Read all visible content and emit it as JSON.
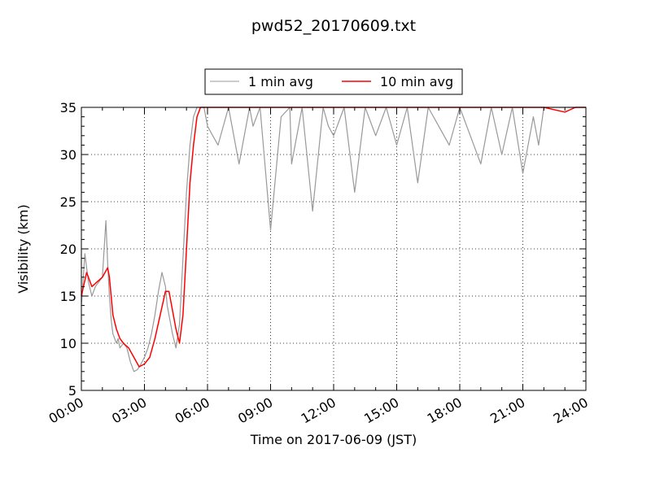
{
  "chart_data": {
    "type": "line",
    "title": "pwd52_20170609.txt",
    "xlabel": "Time on 2017-06-09 (JST)",
    "ylabel": "Visibility (km)",
    "xlim": [
      "00:00",
      "24:00"
    ],
    "ylim": [
      5,
      35
    ],
    "x_ticks": [
      "00:00",
      "03:00",
      "06:00",
      "09:00",
      "12:00",
      "15:00",
      "18:00",
      "21:00",
      "24:00"
    ],
    "y_ticks": [
      5,
      10,
      15,
      20,
      25,
      30,
      35
    ],
    "grid": true,
    "legend_position": "top-center",
    "series": [
      {
        "name": "1 min avg",
        "color": "#999999",
        "x": [
          "00:00",
          "00:10",
          "00:20",
          "00:30",
          "00:40",
          "00:50",
          "01:00",
          "01:10",
          "01:15",
          "01:20",
          "01:25",
          "01:30",
          "01:35",
          "01:40",
          "01:45",
          "01:50",
          "02:00",
          "02:10",
          "02:20",
          "02:30",
          "02:40",
          "02:50",
          "03:00",
          "03:10",
          "03:20",
          "03:30",
          "03:40",
          "03:50",
          "04:00",
          "04:05",
          "04:10",
          "04:20",
          "04:30",
          "04:40",
          "04:50",
          "05:00",
          "05:10",
          "05:20",
          "05:30",
          "05:40",
          "05:50",
          "06:00",
          "06:30",
          "07:00",
          "07:30",
          "08:00",
          "08:10",
          "08:30",
          "09:00",
          "09:30",
          "09:55",
          "10:00",
          "10:30",
          "11:00",
          "11:30",
          "11:45",
          "12:00",
          "12:30",
          "13:00",
          "13:30",
          "14:00",
          "14:30",
          "15:00",
          "15:30",
          "16:00",
          "16:30",
          "17:00",
          "17:30",
          "18:00",
          "18:30",
          "19:00",
          "19:30",
          "20:00",
          "20:30",
          "21:00",
          "21:30",
          "21:45",
          "22:00",
          "22:30",
          "23:00",
          "23:30",
          "24:00"
        ],
        "values": [
          14.0,
          19.5,
          16.5,
          15.0,
          16.0,
          16.5,
          17.0,
          23.0,
          18.5,
          15.0,
          12.5,
          11.0,
          10.5,
          10.0,
          10.5,
          9.5,
          10.0,
          9.5,
          8.0,
          7.0,
          7.2,
          7.8,
          8.5,
          9.5,
          11.0,
          13.0,
          15.5,
          17.5,
          16.0,
          14.0,
          13.0,
          11.0,
          9.5,
          12.0,
          19.0,
          26.0,
          31.0,
          34.0,
          35.0,
          35.0,
          35.0,
          33.0,
          31.0,
          35.0,
          29.0,
          35.0,
          33.0,
          35.0,
          22.0,
          34.0,
          35.0,
          29.0,
          35.0,
          24.0,
          35.0,
          33.0,
          32.0,
          35.0,
          26.0,
          35.0,
          32.0,
          35.0,
          31.0,
          35.0,
          27.0,
          35.0,
          33.0,
          31.0,
          35.0,
          32.0,
          29.0,
          35.0,
          30.0,
          35.0,
          28.0,
          34.0,
          31.0,
          35.0,
          35.0,
          35.0,
          35.0,
          35.0
        ]
      },
      {
        "name": "10 min avg",
        "color": "#ff0000",
        "x": [
          "00:00",
          "00:15",
          "00:30",
          "00:45",
          "01:00",
          "01:15",
          "01:20",
          "01:30",
          "01:40",
          "01:50",
          "02:00",
          "02:15",
          "02:30",
          "02:45",
          "03:00",
          "03:15",
          "03:30",
          "03:45",
          "04:00",
          "04:10",
          "04:20",
          "04:30",
          "04:40",
          "04:50",
          "05:00",
          "05:10",
          "05:20",
          "05:30",
          "05:40",
          "05:50",
          "06:00",
          "07:00",
          "12:00",
          "18:00",
          "20:00",
          "21:00",
          "22:00",
          "23:00",
          "23:30",
          "24:00"
        ],
        "values": [
          15.0,
          17.5,
          16.0,
          16.5,
          17.0,
          18.0,
          17.0,
          13.0,
          11.5,
          10.5,
          10.0,
          9.5,
          8.5,
          7.5,
          7.8,
          8.5,
          10.5,
          13.0,
          15.5,
          15.5,
          13.5,
          11.5,
          10.0,
          13.0,
          20.0,
          27.0,
          31.0,
          34.0,
          35.0,
          35.0,
          35.0,
          35.0,
          35.0,
          35.0,
          35.0,
          35.0,
          35.0,
          34.5,
          35.0,
          35.0
        ]
      }
    ]
  }
}
